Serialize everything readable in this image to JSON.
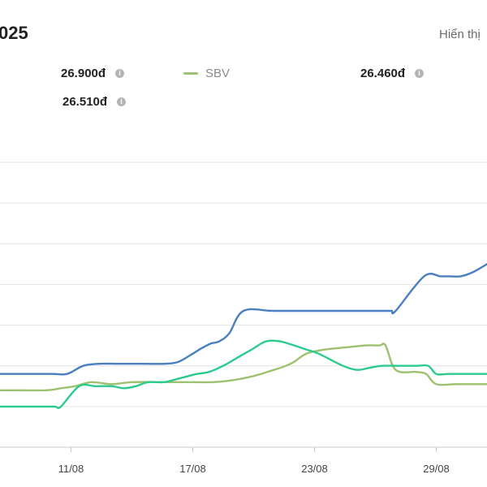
{
  "header": {
    "title": "025",
    "display_link": "Hiển thị"
  },
  "legend": {
    "items": [
      {
        "value": "26.900đ"
      },
      {
        "name": "SBV"
      },
      {
        "value": "26.460đ"
      },
      {
        "value": "26.510đ"
      }
    ]
  },
  "colors": {
    "blue": "#4a7fc1",
    "sbv": "#9ec16f",
    "teal": "#2bcb8f",
    "grid": "#e4e4e4",
    "axis": "#c8c8c8"
  },
  "icons": {
    "info": "info-icon"
  },
  "chart_data": {
    "type": "line",
    "x_ticks": [
      "11/08",
      "17/08",
      "23/08",
      "29/08"
    ],
    "x_tick_days": [
      11,
      17,
      23,
      29
    ],
    "x_range": [
      7.5,
      31.5
    ],
    "y_range": [
      0,
      7
    ],
    "grid": true,
    "series": [
      {
        "color_key": "blue",
        "x": [
          7.5,
          10,
          10.8,
          11.6,
          12.4,
          13.4,
          14.6,
          15.6,
          16.3,
          17,
          17.5,
          17.9,
          18.3,
          18.8,
          19.5,
          21,
          23,
          25,
          26.2,
          26.5,
          26.8,
          27,
          28.4,
          29.2,
          29.6,
          30.2,
          30.8,
          31.5
        ],
        "y": [
          1.8,
          1.8,
          1.8,
          2,
          2.05,
          2.05,
          2.05,
          2.05,
          2.1,
          2.3,
          2.45,
          2.55,
          2.6,
          2.8,
          3.35,
          3.35,
          3.35,
          3.35,
          3.35,
          3.35,
          3.35,
          3.35,
          4.2,
          4.2,
          4.2,
          4.2,
          4.3,
          4.5
        ]
      },
      {
        "name": "SBV",
        "color_key": "sbv",
        "x": [
          7.5,
          8,
          9.8,
          10.5,
          11.2,
          12,
          13,
          14,
          15.6,
          16,
          17,
          18,
          19,
          20,
          21,
          21.6,
          22,
          22.6,
          23.5,
          24.5,
          25.5,
          26.2,
          26.5,
          27,
          28,
          28.5,
          29,
          30,
          31.5
        ],
        "y": [
          1.4,
          1.4,
          1.4,
          1.45,
          1.5,
          1.6,
          1.55,
          1.6,
          1.6,
          1.6,
          1.6,
          1.6,
          1.65,
          1.75,
          1.9,
          2.0,
          2.1,
          2.3,
          2.4,
          2.45,
          2.5,
          2.5,
          2.5,
          1.9,
          1.85,
          1.8,
          1.55,
          1.55,
          1.55
        ]
      },
      {
        "color_key": "teal",
        "x": [
          7.5,
          9.5,
          10.2,
          10.5,
          11.4,
          12.2,
          13,
          13.6,
          14.2,
          14.8,
          15.6,
          16.4,
          17.2,
          17.8,
          18.5,
          19.2,
          19.9,
          20.6,
          21.3,
          22,
          22.6,
          23.2,
          24.4,
          25.1,
          25.7,
          26.3,
          27,
          28,
          28.6,
          29,
          29.6,
          30.4,
          31.5
        ],
        "y": [
          1.0,
          1.0,
          1.0,
          1.0,
          1.5,
          1.5,
          1.5,
          1.45,
          1.5,
          1.6,
          1.6,
          1.7,
          1.8,
          1.85,
          2.0,
          2.2,
          2.4,
          2.6,
          2.6,
          2.5,
          2.4,
          2.3,
          2.0,
          1.9,
          1.95,
          2.0,
          2.0,
          2.0,
          2.0,
          1.8,
          1.8,
          1.8,
          1.8
        ]
      }
    ]
  }
}
